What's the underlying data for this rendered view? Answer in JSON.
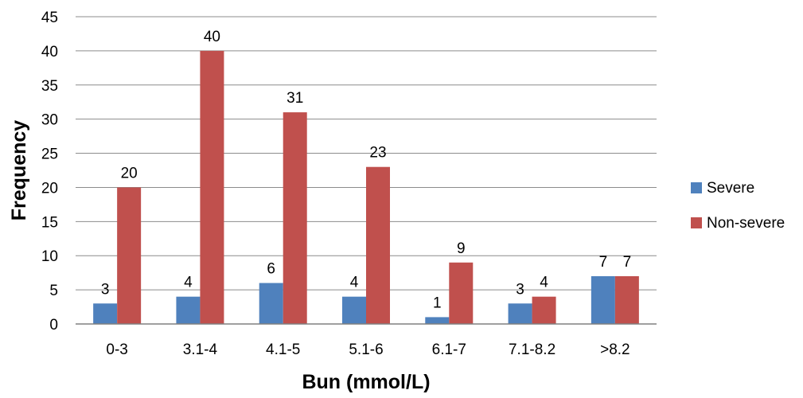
{
  "chart_data": {
    "type": "bar",
    "title": "",
    "xlabel": "Bun (mmol/L)",
    "ylabel": "Frequency",
    "categories": [
      "0-3",
      "3.1-4",
      "4.1-5",
      "5.1-6",
      "6.1-7",
      "7.1-8.2",
      ">8.2"
    ],
    "series": [
      {
        "name": "Severe",
        "values": [
          3,
          4,
          6,
          4,
          1,
          3,
          7
        ],
        "color": "#4f81bd"
      },
      {
        "name": "Non-severe",
        "values": [
          20,
          40,
          31,
          23,
          9,
          4,
          7
        ],
        "color": "#c0504d"
      }
    ],
    "ylim": [
      0,
      45
    ],
    "yticks": [
      "0",
      "5",
      "10",
      "15",
      "20",
      "25",
      "30",
      "35",
      "40",
      "45"
    ],
    "grid": true,
    "legend": "right",
    "data_labels": true
  }
}
